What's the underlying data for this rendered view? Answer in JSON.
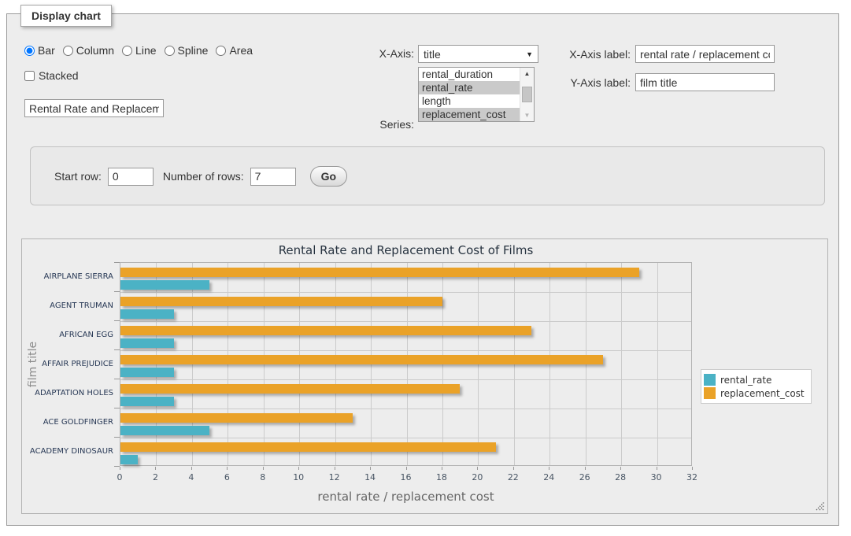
{
  "display_panel": {
    "legend": "Display chart",
    "chart_types": {
      "options": [
        "Bar",
        "Column",
        "Line",
        "Spline",
        "Area"
      ],
      "selected": "Bar"
    },
    "stacked": {
      "label": "Stacked",
      "checked": false
    },
    "title_input": {
      "value": "Rental Rate and Replacement Cost of Films"
    },
    "x_axis": {
      "label": "X-Axis:",
      "selected": "title"
    },
    "series": {
      "label": "Series:",
      "options": [
        {
          "label": "rental_duration",
          "selected": false
        },
        {
          "label": "rental_rate",
          "selected": true
        },
        {
          "label": "length",
          "selected": false
        },
        {
          "label": "replacement_cost",
          "selected": true
        }
      ]
    },
    "x_axis_label": {
      "label": "X-Axis label:",
      "value": "rental rate / replacement cost"
    },
    "y_axis_label": {
      "label": "Y-Axis label:",
      "value": "film title"
    }
  },
  "row_controls": {
    "start_row": {
      "label": "Start row:",
      "value": "0"
    },
    "num_rows": {
      "label": "Number of rows:",
      "value": "7"
    },
    "go_label": "Go"
  },
  "icons": {
    "dropdown_arrow": "▼",
    "scroll_up": "▲",
    "scroll_down": "▼"
  },
  "chart_data": {
    "type": "bar",
    "orientation": "horizontal",
    "title": "Rental Rate and Replacement Cost of Films",
    "categories": [
      "AIRPLANE SIERRA",
      "AGENT TRUMAN",
      "AFRICAN EGG",
      "AFFAIR PREJUDICE",
      "ADAPTATION HOLES",
      "ACE GOLDFINGER",
      "ACADEMY DINOSAUR"
    ],
    "series": [
      {
        "name": "rental_rate",
        "color": "#4bb2c5",
        "values": [
          4.99,
          2.99,
          2.99,
          2.99,
          2.99,
          4.99,
          0.99
        ]
      },
      {
        "name": "replacement_cost",
        "color": "#eaa228",
        "values": [
          28.99,
          17.99,
          22.99,
          26.99,
          18.99,
          12.99,
          20.99
        ]
      }
    ],
    "xlabel": "rental rate / replacement cost",
    "ylabel": "film title",
    "xlim": [
      0,
      32
    ],
    "xtick_step": 2,
    "grid": true,
    "legend_position": "right"
  }
}
